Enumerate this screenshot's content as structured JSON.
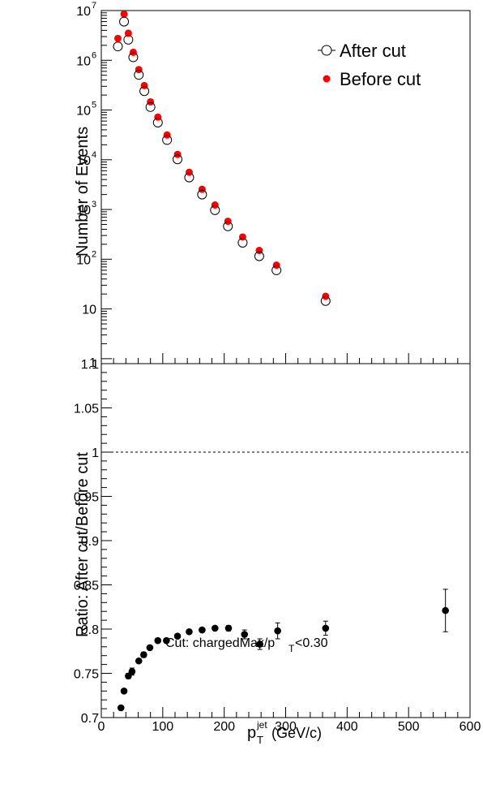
{
  "chart_data": [
    {
      "type": "scatter",
      "title": "",
      "ylabel": "Number of Events",
      "yscale": "log",
      "ylim": [
        1,
        10000000
      ],
      "xlim": [
        0,
        600
      ],
      "ytick_labels": [
        "10",
        "10",
        "10",
        "10",
        "10",
        "10",
        "10",
        "1"
      ],
      "ytick_exps": [
        "2",
        "3",
        "4",
        "5",
        "6",
        "7"
      ],
      "legend": {
        "position": "top-right",
        "entries": [
          "After cut",
          "Before cut"
        ]
      },
      "series": [
        {
          "name": "After cut",
          "marker": "open-circle",
          "color": "#000000",
          "x": [
            27,
            37,
            44,
            52,
            61,
            70,
            80,
            92,
            107,
            124,
            143,
            164,
            185,
            206,
            230,
            257,
            285,
            365
          ],
          "y": [
            1900000,
            6000000,
            2600000,
            1150000,
            510000,
            240000,
            115000,
            56000,
            25000,
            10200,
            4400,
            2000,
            970,
            460,
            215,
            115,
            60,
            14.5
          ]
        },
        {
          "name": "Before cut",
          "marker": "filled-circle",
          "color": "#ff0000",
          "x": [
            27,
            37,
            44,
            52,
            61,
            70,
            80,
            92,
            107,
            124,
            143,
            164,
            185,
            206,
            230,
            257,
            285,
            365
          ],
          "y": [
            2750000,
            8500000,
            3500000,
            1450000,
            650000,
            310000,
            146000,
            72000,
            31500,
            12800,
            5600,
            2550,
            1230,
            580,
            280,
            150,
            76,
            18
          ]
        }
      ]
    },
    {
      "type": "scatter",
      "title": "",
      "xlabel": "p",
      "xlabel_sub": "T",
      "xlabel_sup": "jet",
      "xlabel_unit": "(GeV/c)",
      "ylabel": "Ratio: After cut/Before cut",
      "xlim": [
        0,
        600
      ],
      "ylim": [
        0.7,
        1.1
      ],
      "xtick_labels": [
        "0",
        "100",
        "200",
        "300",
        "400",
        "500",
        "600"
      ],
      "ytick_labels": [
        "0.7",
        "0.75",
        "0.8",
        "0.85",
        "0.9",
        "0.95",
        "1",
        "1.05",
        "1.1"
      ],
      "reference_line": 1.0,
      "annotation": {
        "text_main": "Cut: chargedMax/p",
        "text_sub": "T",
        "text_tail": "<0.30"
      },
      "series": [
        {
          "name": "",
          "marker": "filled-circle",
          "color": "#000000",
          "x": [
            32,
            37,
            44,
            50,
            61,
            69,
            79,
            92,
            106,
            124,
            143,
            164,
            185,
            207,
            233,
            258,
            287,
            365,
            560
          ],
          "y": [
            0.711,
            0.73,
            0.747,
            0.752,
            0.764,
            0.771,
            0.779,
            0.787,
            0.787,
            0.792,
            0.797,
            0.799,
            0.801,
            0.801,
            0.794,
            0.783,
            0.798,
            0.801,
            0.821
          ],
          "err": [
            0,
            0,
            0.003,
            0.004,
            0,
            0.003,
            0,
            0,
            0.002,
            0.002,
            0.002,
            0.002,
            0.002,
            0.003,
            0.005,
            0.006,
            0.009,
            0.008,
            0.024
          ]
        }
      ]
    }
  ]
}
